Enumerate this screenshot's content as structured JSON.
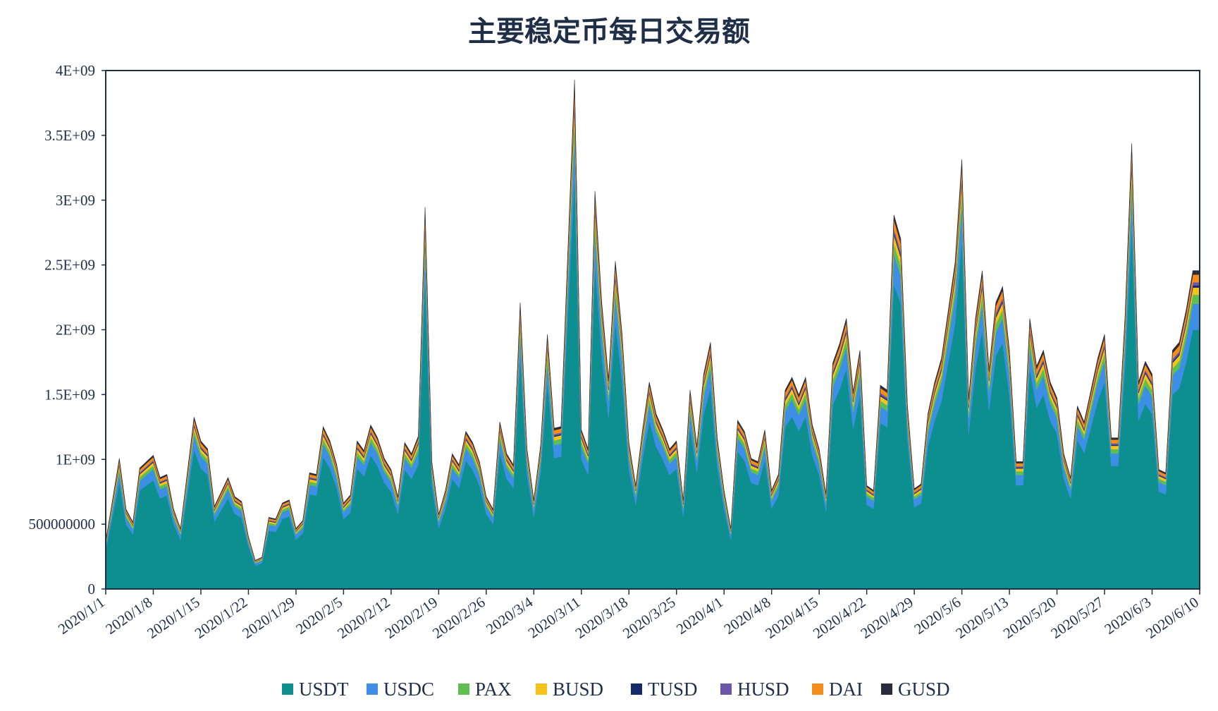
{
  "chart_data": {
    "type": "area",
    "stacked": true,
    "title": "主要稳定币每日交易额",
    "xlabel": "",
    "ylabel": "",
    "ylim": [
      0,
      4000000000
    ],
    "yticks": [
      0,
      500000000,
      1000000000,
      1500000000,
      2000000000,
      2500000000,
      3000000000,
      3500000000,
      4000000000
    ],
    "ytick_labels": [
      "0",
      "500000000",
      "1E+09",
      "1.5E+09",
      "2E+09",
      "2.5E+09",
      "3E+09",
      "3.5E+09",
      "4E+09"
    ],
    "xtick_labels": [
      "2020/1/1",
      "2020/1/8",
      "2020/1/15",
      "2020/1/22",
      "2020/1/29",
      "2020/2/5",
      "2020/2/12",
      "2020/2/19",
      "2020/2/26",
      "2020/3/4",
      "2020/3/11",
      "2020/3/18",
      "2020/3/25",
      "2020/4/1",
      "2020/4/8",
      "2020/4/15",
      "2020/4/22",
      "2020/4/29",
      "2020/5/6",
      "2020/5/13",
      "2020/5/20",
      "2020/5/27",
      "2020/6/3",
      "2020/6/10"
    ],
    "start_date": "2020/1/1",
    "legend_position": "bottom",
    "grid": false,
    "usdt_anchor_points": [
      [
        0,
        300000000
      ],
      [
        2,
        820000000
      ],
      [
        3,
        500000000
      ],
      [
        4,
        420000000
      ],
      [
        5,
        760000000
      ],
      [
        7,
        840000000
      ],
      [
        8,
        700000000
      ],
      [
        9,
        720000000
      ],
      [
        10,
        500000000
      ],
      [
        11,
        380000000
      ],
      [
        13,
        1080000000
      ],
      [
        14,
        930000000
      ],
      [
        15,
        880000000
      ],
      [
        16,
        520000000
      ],
      [
        18,
        700000000
      ],
      [
        19,
        580000000
      ],
      [
        20,
        550000000
      ],
      [
        21,
        330000000
      ],
      [
        22,
        180000000
      ],
      [
        23,
        200000000
      ],
      [
        24,
        450000000
      ],
      [
        25,
        440000000
      ],
      [
        26,
        540000000
      ],
      [
        27,
        560000000
      ],
      [
        28,
        380000000
      ],
      [
        29,
        430000000
      ],
      [
        30,
        730000000
      ],
      [
        31,
        720000000
      ],
      [
        32,
        1020000000
      ],
      [
        33,
        930000000
      ],
      [
        34,
        780000000
      ],
      [
        35,
        540000000
      ],
      [
        36,
        590000000
      ],
      [
        37,
        930000000
      ],
      [
        38,
        870000000
      ],
      [
        39,
        1030000000
      ],
      [
        40,
        950000000
      ],
      [
        41,
        820000000
      ],
      [
        42,
        750000000
      ],
      [
        43,
        580000000
      ],
      [
        44,
        920000000
      ],
      [
        45,
        850000000
      ],
      [
        46,
        960000000
      ],
      [
        47,
        2400000000
      ],
      [
        48,
        800000000
      ],
      [
        49,
        470000000
      ],
      [
        50,
        620000000
      ],
      [
        51,
        850000000
      ],
      [
        52,
        780000000
      ],
      [
        53,
        990000000
      ],
      [
        54,
        920000000
      ],
      [
        55,
        800000000
      ],
      [
        56,
        580000000
      ],
      [
        57,
        500000000
      ],
      [
        58,
        1050000000
      ],
      [
        59,
        850000000
      ],
      [
        60,
        780000000
      ],
      [
        61,
        1800000000
      ],
      [
        62,
        880000000
      ],
      [
        63,
        560000000
      ],
      [
        64,
        900000000
      ],
      [
        65,
        1600000000
      ],
      [
        66,
        1010000000
      ],
      [
        67,
        1020000000
      ],
      [
        69,
        3200000000
      ],
      [
        70,
        1000000000
      ],
      [
        71,
        880000000
      ],
      [
        72,
        2500000000
      ],
      [
        73,
        1800000000
      ],
      [
        74,
        1320000000
      ],
      [
        75,
        2060000000
      ],
      [
        76,
        1600000000
      ],
      [
        77,
        920000000
      ],
      [
        78,
        650000000
      ],
      [
        79,
        1000000000
      ],
      [
        80,
        1300000000
      ],
      [
        81,
        1100000000
      ],
      [
        82,
        1000000000
      ],
      [
        83,
        880000000
      ],
      [
        84,
        930000000
      ],
      [
        85,
        560000000
      ],
      [
        86,
        1250000000
      ],
      [
        87,
        900000000
      ],
      [
        88,
        1350000000
      ],
      [
        89,
        1550000000
      ],
      [
        90,
        950000000
      ],
      [
        91,
        620000000
      ],
      [
        92,
        380000000
      ],
      [
        93,
        1060000000
      ],
      [
        94,
        990000000
      ],
      [
        95,
        820000000
      ],
      [
        96,
        800000000
      ],
      [
        97,
        1000000000
      ],
      [
        98,
        620000000
      ],
      [
        99,
        720000000
      ],
      [
        100,
        1250000000
      ],
      [
        101,
        1330000000
      ],
      [
        102,
        1220000000
      ],
      [
        103,
        1330000000
      ],
      [
        104,
        1030000000
      ],
      [
        105,
        880000000
      ],
      [
        106,
        600000000
      ],
      [
        107,
        1420000000
      ],
      [
        108,
        1540000000
      ],
      [
        109,
        1700000000
      ],
      [
        110,
        1240000000
      ],
      [
        111,
        1500000000
      ],
      [
        112,
        650000000
      ],
      [
        113,
        620000000
      ],
      [
        114,
        1280000000
      ],
      [
        115,
        1250000000
      ],
      [
        116,
        2350000000
      ],
      [
        117,
        2200000000
      ],
      [
        118,
        1150000000
      ],
      [
        119,
        630000000
      ],
      [
        120,
        660000000
      ],
      [
        121,
        1100000000
      ],
      [
        122,
        1300000000
      ],
      [
        123,
        1450000000
      ],
      [
        124,
        1750000000
      ],
      [
        125,
        2050000000
      ],
      [
        126,
        2700000000
      ],
      [
        127,
        1200000000
      ],
      [
        128,
        1700000000
      ],
      [
        129,
        2000000000
      ],
      [
        130,
        1380000000
      ],
      [
        131,
        1800000000
      ],
      [
        132,
        1900000000
      ],
      [
        133,
        1500000000
      ],
      [
        134,
        800000000
      ],
      [
        135,
        800000000
      ],
      [
        136,
        1700000000
      ],
      [
        137,
        1400000000
      ],
      [
        138,
        1500000000
      ],
      [
        139,
        1300000000
      ],
      [
        140,
        1200000000
      ],
      [
        141,
        850000000
      ],
      [
        142,
        700000000
      ],
      [
        143,
        1150000000
      ],
      [
        144,
        1050000000
      ],
      [
        145,
        1250000000
      ],
      [
        146,
        1450000000
      ],
      [
        147,
        1600000000
      ],
      [
        148,
        950000000
      ],
      [
        149,
        950000000
      ],
      [
        150,
        1700000000
      ],
      [
        151,
        2800000000
      ],
      [
        152,
        1300000000
      ],
      [
        153,
        1430000000
      ],
      [
        154,
        1350000000
      ],
      [
        155,
        750000000
      ],
      [
        156,
        730000000
      ],
      [
        157,
        1500000000
      ],
      [
        158,
        1550000000
      ],
      [
        159,
        1750000000
      ],
      [
        160,
        2000000000
      ]
    ],
    "series": [
      {
        "name": "USDT",
        "color": "#0e8f8f",
        "share_of_usdt": 1.0
      },
      {
        "name": "USDC",
        "color": "#3d8fe6",
        "share_of_usdt": 0.1
      },
      {
        "name": "PAX",
        "color": "#5dbf4f",
        "share_of_usdt": 0.035
      },
      {
        "name": "BUSD",
        "color": "#f6c21c",
        "share_of_usdt": 0.028
      },
      {
        "name": "TUSD",
        "color": "#142a6b",
        "share_of_usdt": 0.008
      },
      {
        "name": "HUSD",
        "color": "#6a57a8",
        "share_of_usdt": 0.012
      },
      {
        "name": "DAI",
        "color": "#f58d1a",
        "share_of_usdt": 0.03
      },
      {
        "name": "GUSD",
        "color": "#2b2b3a",
        "share_of_usdt": 0.015
      }
    ]
  }
}
